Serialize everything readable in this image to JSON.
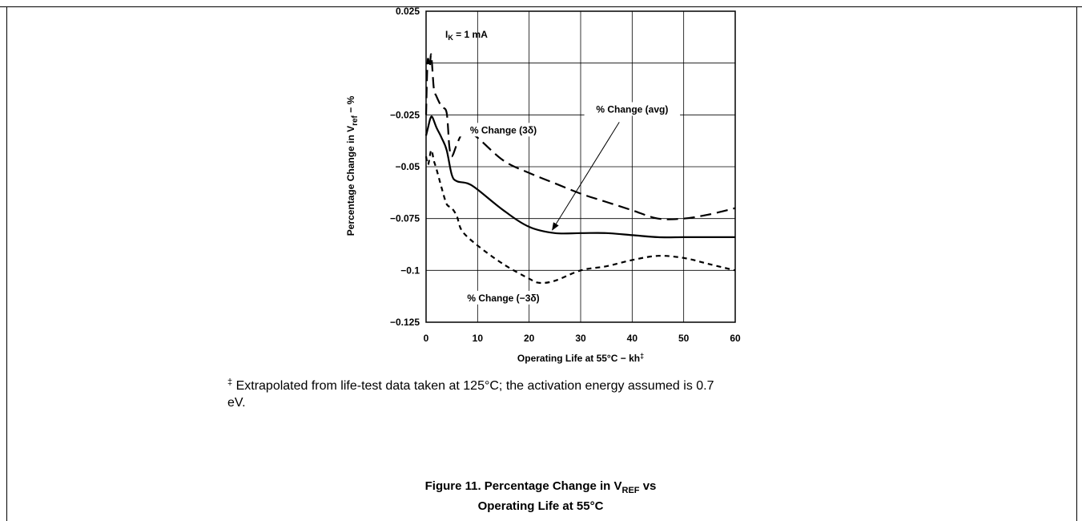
{
  "chart_data": {
    "type": "line",
    "annotation": {
      "main": "I",
      "sub": "K",
      "tail": " = 1 mA"
    },
    "ylabel": {
      "main": "Percentage Change in V",
      "sub": "ref",
      "tail": " − %"
    },
    "xlabel": {
      "main": "Operating Life at 55°C − kh",
      "sup": "‡"
    },
    "xlim": [
      0,
      60
    ],
    "ylim": [
      -0.125,
      0.025
    ],
    "x_ticks": [
      {
        "value": 0,
        "label": "0"
      },
      {
        "value": 10,
        "label": "10"
      },
      {
        "value": 20,
        "label": "20"
      },
      {
        "value": 30,
        "label": "30"
      },
      {
        "value": 40,
        "label": "40"
      },
      {
        "value": 50,
        "label": "50"
      },
      {
        "value": 60,
        "label": "60"
      }
    ],
    "y_ticks": [
      {
        "value": 0.025,
        "label": "0.025"
      },
      {
        "value": -0.025,
        "label": "−0.025"
      },
      {
        "value": -0.05,
        "label": "−0.05"
      },
      {
        "value": -0.075,
        "label": "−0.075"
      },
      {
        "value": -0.1,
        "label": "−0.1"
      },
      {
        "value": -0.125,
        "label": "−0.125"
      }
    ],
    "grid_y": [
      0,
      -0.025,
      -0.05,
      -0.075,
      -0.1
    ],
    "grid": true,
    "series": [
      {
        "name": "% Change (avg)",
        "dash": "solid",
        "label": {
          "text": "% Change  (avg)",
          "at": [
            40,
            -0.0235
          ]
        },
        "arrow": {
          "from": [
            37.5,
            -0.0285
          ],
          "to": [
            24.5,
            -0.0805
          ]
        },
        "x": [
          0,
          0.3,
          0.8,
          1.2,
          2,
          3,
          4,
          5,
          6,
          8,
          10,
          15,
          20,
          25,
          30,
          35,
          40,
          45,
          50,
          55,
          60
        ],
        "y": [
          -0.035,
          -0.032,
          -0.027,
          -0.026,
          -0.031,
          -0.036,
          -0.042,
          -0.054,
          -0.057,
          -0.058,
          -0.061,
          -0.071,
          -0.079,
          -0.082,
          -0.082,
          -0.082,
          -0.083,
          -0.084,
          -0.084,
          -0.084,
          -0.084
        ]
      },
      {
        "name": "% Change (3δ)",
        "dash": "long-dash",
        "label": {
          "text": "% Change  (3δ)",
          "at": [
            15,
            -0.0335
          ]
        },
        "x": [
          0,
          0.3,
          0.7,
          1,
          1.5,
          2,
          3,
          4,
          4.5,
          5,
          6,
          7,
          8,
          10,
          15,
          20,
          25,
          30,
          35,
          40,
          45,
          50,
          55,
          60
        ],
        "y": [
          -0.025,
          0.001,
          -0.002,
          0.004,
          -0.012,
          -0.016,
          -0.021,
          -0.024,
          -0.04,
          -0.045,
          -0.039,
          -0.034,
          -0.033,
          -0.036,
          -0.047,
          -0.053,
          -0.058,
          -0.063,
          -0.067,
          -0.071,
          -0.075,
          -0.075,
          -0.073,
          -0.07
        ]
      },
      {
        "name": "% Change (−3δ)",
        "dash": "short-dash",
        "label": {
          "text": "% Change  (−3δ)",
          "at": [
            15,
            -0.1145
          ]
        },
        "x": [
          0,
          0.4,
          1,
          1.5,
          2,
          3,
          4,
          5,
          6,
          7,
          10,
          15,
          20,
          22,
          25,
          30,
          35,
          40,
          45,
          50,
          55,
          60
        ],
        "y": [
          -0.045,
          -0.049,
          -0.042,
          -0.047,
          -0.051,
          -0.06,
          -0.068,
          -0.07,
          -0.074,
          -0.081,
          -0.088,
          -0.097,
          -0.104,
          -0.106,
          -0.105,
          -0.1,
          -0.098,
          -0.095,
          -0.093,
          -0.094,
          -0.097,
          -0.1
        ]
      }
    ]
  },
  "footnote": {
    "mark": "‡",
    "text": " Extrapolated from life-test data taken at 125°C; the activation energy assumed is 0.7 eV."
  },
  "caption": {
    "line1_main": "Figure 11. Percentage Change in V",
    "line1_sub": "REF",
    "line1_tail": " vs",
    "line2": "Operating Life at 55°C"
  }
}
